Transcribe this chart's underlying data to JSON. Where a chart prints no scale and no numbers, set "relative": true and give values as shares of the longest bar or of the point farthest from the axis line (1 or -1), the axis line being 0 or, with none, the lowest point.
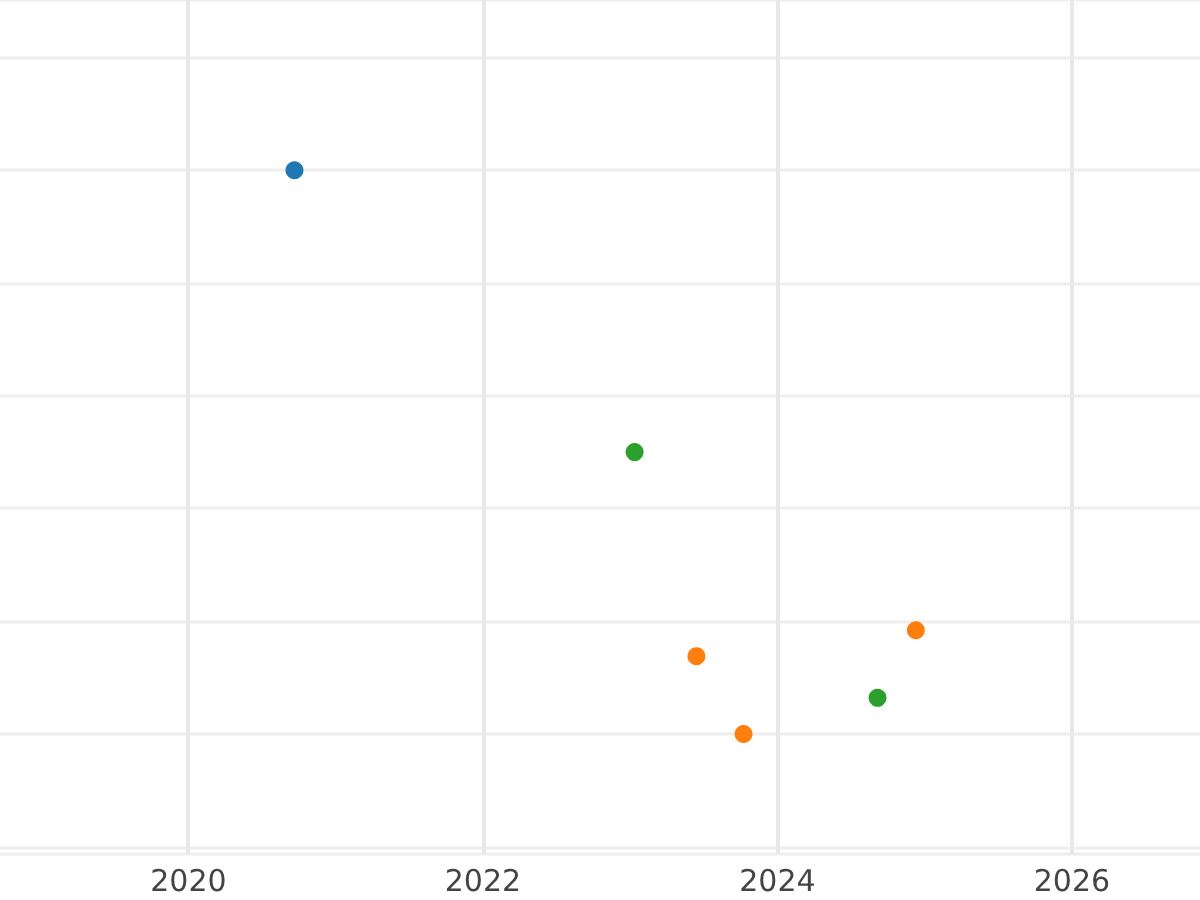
{
  "chart_data": {
    "type": "scatter",
    "relative": true,
    "xlim": [
      2018.72,
      2026.87
    ],
    "xticks": [
      2020,
      2022,
      2024,
      2026
    ],
    "grid": true,
    "marker": "circle",
    "series": [
      {
        "color": "#1f77b4",
        "x": [
          2020.72
        ],
        "values": [
          1
        ]
      },
      {
        "color": "#2ca02c",
        "x": [
          2023.03,
          2024.68
        ],
        "values": [
          0.5,
          0.064
        ]
      },
      {
        "color": "#ff7f0e",
        "x": [
          2023.45,
          2023.77,
          2024.94
        ],
        "values": [
          0.138,
          0,
          0.184
        ]
      }
    ]
  }
}
